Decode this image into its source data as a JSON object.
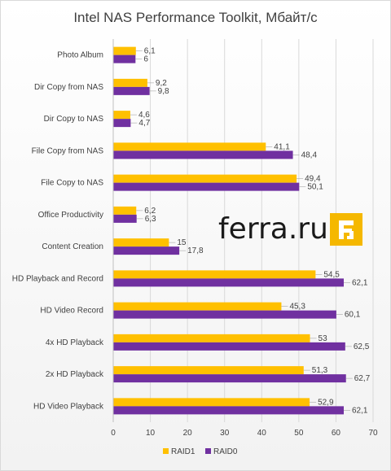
{
  "chart_data": {
    "type": "bar",
    "orientation": "horizontal",
    "title": "Intel NAS Performance Toolkit, Мбайт/с",
    "categories": [
      "Photo Album",
      "Dir Copy from NAS",
      "Dir Copy to NAS",
      "File Copy from NAS",
      "File Copy to NAS",
      "Office Productivity",
      "Content Creation",
      "HD Playback and Record",
      "HD Video Record",
      "4x HD Playback",
      "2x HD Playback",
      "HD Video Playback"
    ],
    "series": [
      {
        "name": "RAID1",
        "color": "#FFC000",
        "values": [
          6.1,
          9.2,
          4.6,
          41.1,
          49.4,
          6.2,
          15,
          54.5,
          45.3,
          53,
          51.3,
          52.9
        ],
        "labels": [
          "6,1",
          "9,2",
          "4,6",
          "41,1",
          "49,4",
          "6,2",
          "15",
          "54,5",
          "45,3",
          "53",
          "51,3",
          "52,9"
        ]
      },
      {
        "name": "RAID0",
        "color": "#7030A0",
        "values": [
          6,
          9.8,
          4.7,
          48.4,
          50.1,
          6.3,
          17.8,
          62.1,
          60.1,
          62.5,
          62.7,
          62.1
        ],
        "labels": [
          "6",
          "9,8",
          "4,7",
          "48,4",
          "50,1",
          "6,3",
          "17,8",
          "62,1",
          "60,1",
          "62,5",
          "62,7",
          "62,1"
        ]
      }
    ],
    "xlim": [
      0,
      70
    ],
    "xticks": [
      "0",
      "10",
      "20",
      "30",
      "40",
      "50",
      "60",
      "70"
    ],
    "grid": true,
    "legend": "bottom"
  },
  "watermark": {
    "text": "ferra.ru",
    "logo_icon": "ferra-logo-icon",
    "logo_color": "#F5B800"
  }
}
